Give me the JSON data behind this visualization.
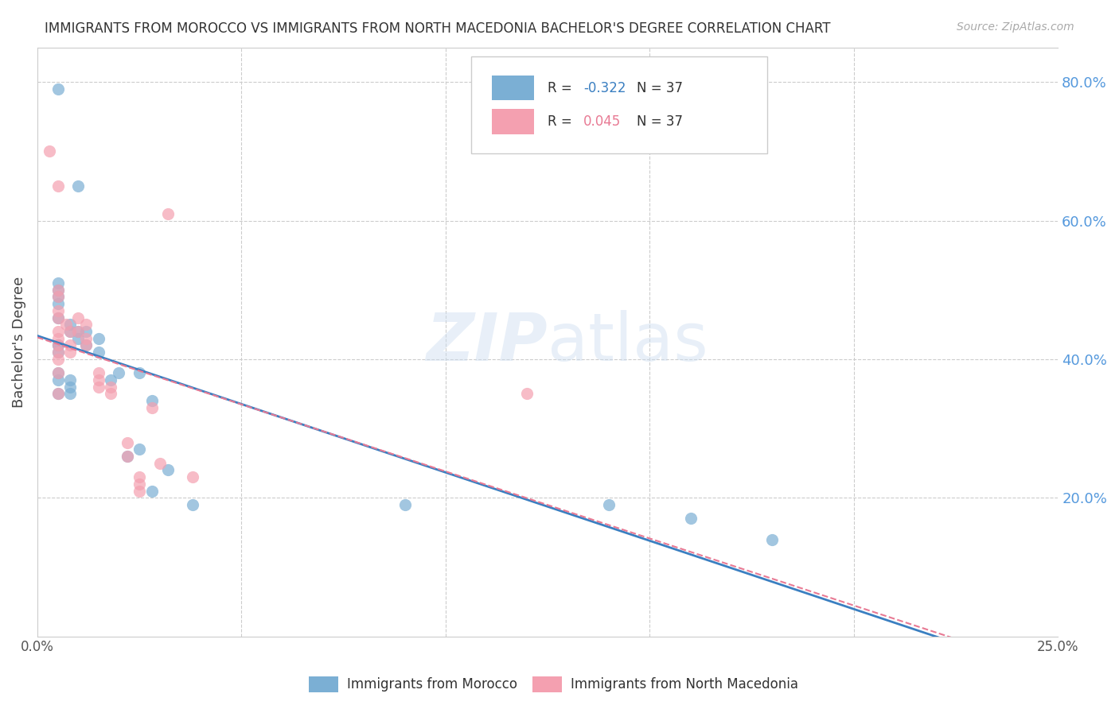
{
  "title": "IMMIGRANTS FROM MOROCCO VS IMMIGRANTS FROM NORTH MACEDONIA BACHELOR'S DEGREE CORRELATION CHART",
  "source": "Source: ZipAtlas.com",
  "xlabel_morocco": "Immigrants from Morocco",
  "xlabel_north_macedonia": "Immigrants from North Macedonia",
  "ylabel": "Bachelor's Degree",
  "xlim": [
    0.0,
    0.25
  ],
  "ylim": [
    0.0,
    0.85
  ],
  "R_morocco": -0.322,
  "N_morocco": 37,
  "R_north_macedonia": 0.045,
  "N_north_macedonia": 37,
  "color_morocco": "#7bafd4",
  "color_north_macedonia": "#f4a0b0",
  "color_trendline_morocco": "#3a7fc1",
  "color_trendline_north_macedonia": "#e87a94",
  "morocco_x": [
    0.005,
    0.01,
    0.005,
    0.005,
    0.005,
    0.005,
    0.005,
    0.008,
    0.008,
    0.01,
    0.01,
    0.005,
    0.005,
    0.005,
    0.005,
    0.005,
    0.008,
    0.008,
    0.008,
    0.012,
    0.012,
    0.015,
    0.015,
    0.018,
    0.02,
    0.022,
    0.025,
    0.025,
    0.028,
    0.028,
    0.032,
    0.038,
    0.14,
    0.16,
    0.18,
    0.09,
    0.005
  ],
  "morocco_y": [
    0.79,
    0.65,
    0.51,
    0.5,
    0.49,
    0.48,
    0.46,
    0.45,
    0.44,
    0.44,
    0.43,
    0.42,
    0.42,
    0.41,
    0.38,
    0.37,
    0.37,
    0.36,
    0.35,
    0.44,
    0.42,
    0.43,
    0.41,
    0.37,
    0.38,
    0.26,
    0.38,
    0.27,
    0.34,
    0.21,
    0.24,
    0.19,
    0.19,
    0.17,
    0.14,
    0.19,
    0.35
  ],
  "north_macedonia_x": [
    0.003,
    0.005,
    0.005,
    0.005,
    0.005,
    0.005,
    0.005,
    0.005,
    0.005,
    0.005,
    0.005,
    0.007,
    0.008,
    0.008,
    0.008,
    0.01,
    0.01,
    0.012,
    0.012,
    0.012,
    0.015,
    0.015,
    0.015,
    0.018,
    0.018,
    0.022,
    0.022,
    0.025,
    0.025,
    0.025,
    0.028,
    0.03,
    0.032,
    0.038,
    0.12,
    0.005,
    0.005
  ],
  "north_macedonia_y": [
    0.7,
    0.65,
    0.5,
    0.49,
    0.47,
    0.46,
    0.44,
    0.43,
    0.42,
    0.41,
    0.4,
    0.45,
    0.44,
    0.42,
    0.41,
    0.46,
    0.44,
    0.45,
    0.43,
    0.42,
    0.38,
    0.37,
    0.36,
    0.36,
    0.35,
    0.28,
    0.26,
    0.23,
    0.22,
    0.21,
    0.33,
    0.25,
    0.61,
    0.23,
    0.35,
    0.38,
    0.35
  ]
}
